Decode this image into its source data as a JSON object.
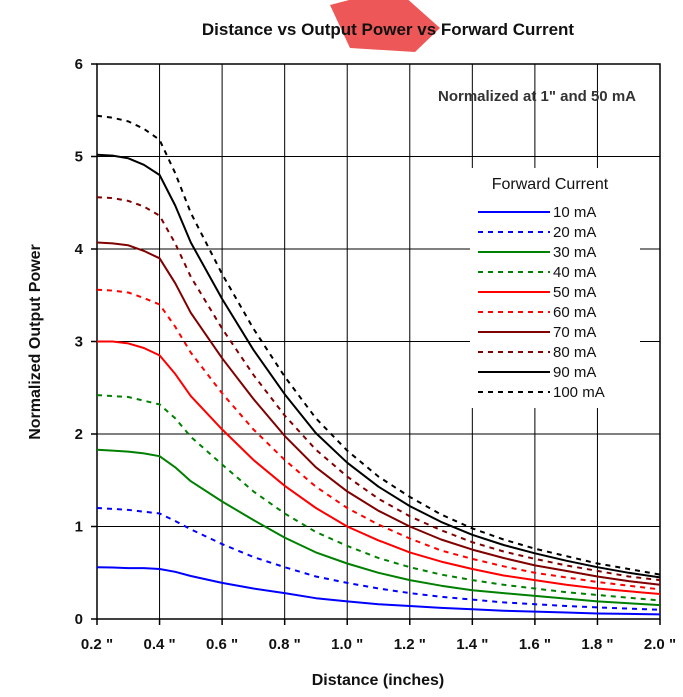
{
  "chart_data": {
    "type": "line",
    "title": "Distance vs Output Power vs Forward Current",
    "xlabel": "Distance (inches)",
    "ylabel": "Normalized Output Power",
    "annotation": "Normalized at 1\" and 50 mA",
    "xlim": [
      0.2,
      2.0
    ],
    "ylim": [
      0,
      6
    ],
    "x_ticks": [
      "0.2 \"",
      "0.4 \"",
      "0.6 \"",
      "0.8 \"",
      "1.0 \"",
      "1.2 \"",
      "1.4 \"",
      "1.6 \"",
      "1.8 \"",
      "2.0 \""
    ],
    "x_tick_values": [
      0.2,
      0.4,
      0.6,
      0.8,
      1.0,
      1.2,
      1.4,
      1.6,
      1.8,
      2.0
    ],
    "y_ticks": [
      "0",
      "1",
      "2",
      "3",
      "4",
      "5",
      "6"
    ],
    "y_tick_values": [
      0,
      1,
      2,
      3,
      4,
      5,
      6
    ],
    "grid": true,
    "legend": {
      "title": "Forward Current",
      "placement": "right"
    },
    "x": [
      0.2,
      0.25,
      0.3,
      0.35,
      0.4,
      0.45,
      0.5,
      0.6,
      0.7,
      0.8,
      0.9,
      1.0,
      1.1,
      1.2,
      1.3,
      1.4,
      1.5,
      1.6,
      1.7,
      1.8,
      1.9,
      2.0
    ],
    "series": [
      {
        "name": "10 mA",
        "color": "#0000ff",
        "dash": "solid",
        "values": [
          0.56,
          0.557,
          0.55,
          0.55,
          0.54,
          0.51,
          0.465,
          0.39,
          0.33,
          0.28,
          0.225,
          0.19,
          0.16,
          0.14,
          0.12,
          0.105,
          0.09,
          0.08,
          0.07,
          0.06,
          0.055,
          0.05
        ]
      },
      {
        "name": "20 mA",
        "color": "#0000ff",
        "dash": "dashed",
        "values": [
          1.2,
          1.19,
          1.18,
          1.16,
          1.14,
          1.06,
          0.97,
          0.81,
          0.67,
          0.56,
          0.46,
          0.39,
          0.33,
          0.28,
          0.24,
          0.21,
          0.18,
          0.16,
          0.14,
          0.125,
          0.112,
          0.1
        ]
      },
      {
        "name": "30 mA",
        "color": "#008000",
        "dash": "solid",
        "values": [
          1.83,
          1.82,
          1.81,
          1.79,
          1.76,
          1.64,
          1.49,
          1.27,
          1.07,
          0.88,
          0.72,
          0.6,
          0.5,
          0.42,
          0.36,
          0.31,
          0.28,
          0.25,
          0.22,
          0.19,
          0.17,
          0.15
        ]
      },
      {
        "name": "40 mA",
        "color": "#008000",
        "dash": "dashed",
        "values": [
          2.42,
          2.41,
          2.4,
          2.36,
          2.32,
          2.17,
          1.97,
          1.67,
          1.38,
          1.14,
          0.94,
          0.79,
          0.66,
          0.56,
          0.48,
          0.42,
          0.37,
          0.33,
          0.29,
          0.26,
          0.23,
          0.2
        ]
      },
      {
        "name": "50 mA",
        "color": "#ff0000",
        "dash": "solid",
        "values": [
          3.0,
          3.0,
          2.98,
          2.93,
          2.85,
          2.65,
          2.41,
          2.05,
          1.72,
          1.44,
          1.2,
          1.0,
          0.85,
          0.72,
          0.62,
          0.54,
          0.47,
          0.42,
          0.37,
          0.33,
          0.3,
          0.27
        ]
      },
      {
        "name": "60 mA",
        "color": "#ff0000",
        "dash": "dashed",
        "values": [
          3.56,
          3.55,
          3.53,
          3.47,
          3.4,
          3.16,
          2.88,
          2.44,
          2.05,
          1.72,
          1.43,
          1.2,
          1.02,
          0.87,
          0.74,
          0.65,
          0.57,
          0.5,
          0.45,
          0.4,
          0.36,
          0.32
        ]
      },
      {
        "name": "70 mA",
        "color": "#800000",
        "dash": "solid",
        "values": [
          4.07,
          4.06,
          4.04,
          3.98,
          3.9,
          3.63,
          3.31,
          2.82,
          2.38,
          1.98,
          1.64,
          1.38,
          1.17,
          1.0,
          0.86,
          0.75,
          0.66,
          0.58,
          0.52,
          0.46,
          0.41,
          0.37
        ]
      },
      {
        "name": "80 mA",
        "color": "#800000",
        "dash": "dashed",
        "values": [
          4.56,
          4.55,
          4.52,
          4.46,
          4.36,
          4.06,
          3.7,
          3.14,
          2.64,
          2.2,
          1.83,
          1.54,
          1.3,
          1.11,
          0.96,
          0.83,
          0.73,
          0.65,
          0.58,
          0.52,
          0.46,
          0.42
        ]
      },
      {
        "name": "90 mA",
        "color": "#000000",
        "dash": "solid",
        "values": [
          5.02,
          5.01,
          4.98,
          4.91,
          4.8,
          4.47,
          4.07,
          3.46,
          2.91,
          2.43,
          2.01,
          1.69,
          1.43,
          1.22,
          1.05,
          0.91,
          0.8,
          0.71,
          0.63,
          0.56,
          0.5,
          0.45
        ]
      },
      {
        "name": "100 mA",
        "color": "#000000",
        "dash": "dashed",
        "values": [
          5.44,
          5.42,
          5.38,
          5.3,
          5.18,
          4.82,
          4.39,
          3.73,
          3.14,
          2.62,
          2.17,
          1.82,
          1.54,
          1.32,
          1.13,
          0.98,
          0.86,
          0.76,
          0.68,
          0.6,
          0.54,
          0.48
        ]
      }
    ]
  }
}
